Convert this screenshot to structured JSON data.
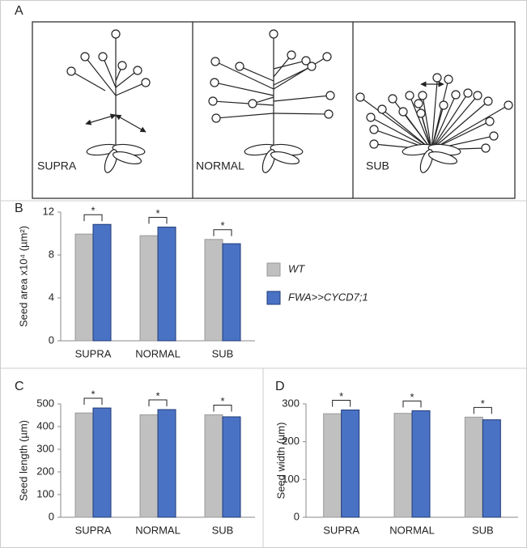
{
  "panel_a": {
    "label": "A",
    "captions": [
      "SUPRA",
      "NORMAL",
      "SUB"
    ]
  },
  "chart_data": [
    {
      "type": "bar",
      "label": "B",
      "ylabel": "Seed area x10⁴ (µm²)",
      "categories": [
        "SUPRA",
        "NORMAL",
        "SUB"
      ],
      "series": [
        {
          "name": "WT",
          "color": "#c0c0c0",
          "values": [
            9.95,
            9.8,
            9.45
          ]
        },
        {
          "name": "FWA>>CYCD7;1",
          "color": "#4a72c4",
          "values": [
            10.85,
            10.6,
            9.05
          ]
        }
      ],
      "significance": [
        "*",
        "*",
        "*"
      ],
      "ylim": [
        0,
        12
      ],
      "yticks": [
        0,
        4,
        8,
        12
      ],
      "legend": "right"
    },
    {
      "type": "bar",
      "label": "C",
      "ylabel": "Seed length (µm)",
      "categories": [
        "SUPRA",
        "NORMAL",
        "SUB"
      ],
      "series": [
        {
          "color": "#c0c0c0",
          "values": [
            460,
            452,
            452
          ]
        },
        {
          "color": "#4a72c4",
          "values": [
            482,
            475,
            443
          ]
        }
      ],
      "significance": [
        "*",
        "*",
        "*"
      ],
      "ylim": [
        0,
        500
      ],
      "yticks": [
        0,
        100,
        200,
        300,
        400,
        500
      ]
    },
    {
      "type": "bar",
      "label": "D",
      "ylabel": "Seed width (µm)",
      "categories": [
        "SUPRA",
        "NORMAL",
        "SUB"
      ],
      "series": [
        {
          "color": "#c0c0c0",
          "values": [
            274,
            275,
            265
          ]
        },
        {
          "color": "#4a72c4",
          "values": [
            284,
            282,
            258
          ]
        }
      ],
      "significance": [
        "*",
        "*",
        "*"
      ],
      "ylim": [
        0,
        300
      ],
      "yticks": [
        0,
        100,
        200,
        300
      ]
    }
  ]
}
